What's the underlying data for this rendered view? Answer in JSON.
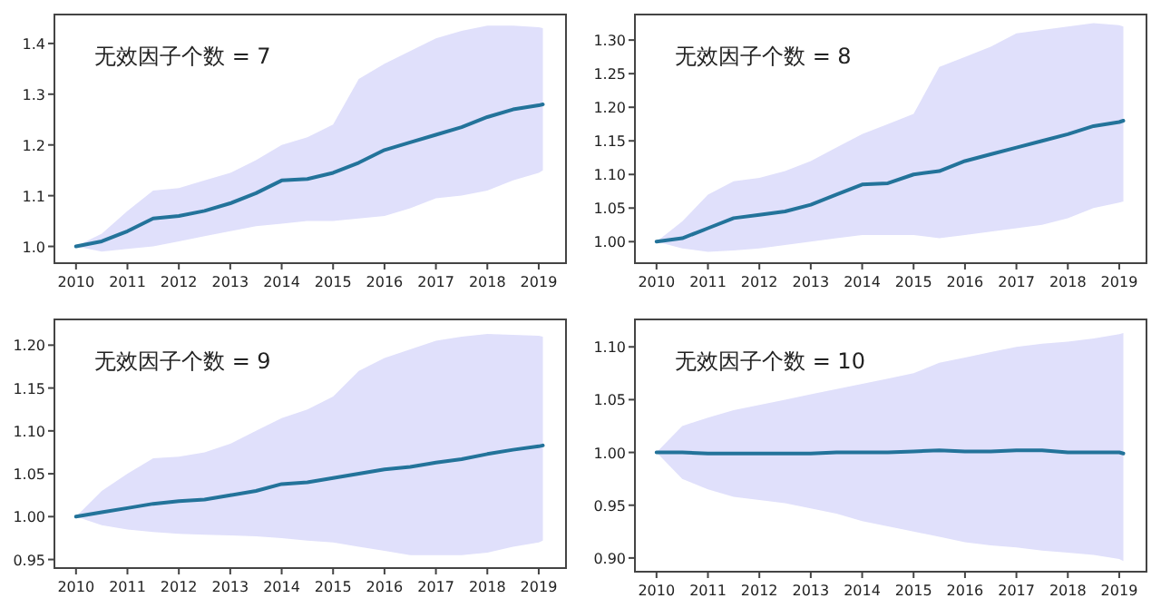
{
  "chart_data": [
    {
      "type": "line",
      "title": "无效因子个数 = 7",
      "x": [
        2010,
        2010.5,
        2011,
        2011.5,
        2012,
        2012.5,
        2013,
        2013.5,
        2014,
        2014.5,
        2015,
        2015.5,
        2016,
        2016.5,
        2017,
        2017.5,
        2018,
        2018.5,
        2019,
        2019.08
      ],
      "xlim": [
        2009.58,
        2019.53
      ],
      "xticks": [
        2010,
        2011,
        2012,
        2013,
        2014,
        2015,
        2016,
        2017,
        2018,
        2019
      ],
      "ylim": [
        0.967,
        1.457
      ],
      "yticks": [
        {
          "value": 1,
          "label": "1.0"
        },
        {
          "value": 1.1,
          "label": "1.1"
        },
        {
          "value": 1.2,
          "label": "1.2"
        },
        {
          "value": 1.3,
          "label": "1.3"
        },
        {
          "value": 1.4,
          "label": "1.4"
        }
      ],
      "series": [
        {
          "color": "#23739a",
          "values": [
            1.0,
            1.01,
            1.03,
            1.055,
            1.06,
            1.07,
            1.085,
            1.105,
            1.13,
            1.133,
            1.145,
            1.165,
            1.19,
            1.205,
            1.22,
            1.235,
            1.255,
            1.27,
            1.278,
            1.28
          ],
          "upper": [
            1.0,
            1.025,
            1.07,
            1.11,
            1.115,
            1.13,
            1.145,
            1.17,
            1.2,
            1.215,
            1.24,
            1.33,
            1.36,
            1.385,
            1.41,
            1.425,
            1.435,
            1.435,
            1.432,
            1.43
          ],
          "lower": [
            1.0,
            0.99,
            0.995,
            1.0,
            1.01,
            1.02,
            1.03,
            1.04,
            1.045,
            1.05,
            1.05,
            1.055,
            1.06,
            1.075,
            1.095,
            1.1,
            1.11,
            1.13,
            1.145,
            1.15
          ]
        }
      ]
    },
    {
      "type": "line",
      "title": "无效因子个数 = 8",
      "x": [
        2010,
        2010.5,
        2011,
        2011.5,
        2012,
        2012.5,
        2013,
        2013.5,
        2014,
        2014.5,
        2015,
        2015.5,
        2016,
        2016.5,
        2017,
        2017.5,
        2018,
        2018.5,
        2019,
        2019.08
      ],
      "xlim": [
        2009.58,
        2019.53
      ],
      "xticks": [
        2010,
        2011,
        2012,
        2013,
        2014,
        2015,
        2016,
        2017,
        2018,
        2019
      ],
      "ylim": [
        0.968,
        1.338
      ],
      "yticks": [
        {
          "value": 1,
          "label": "1.00"
        },
        {
          "value": 1.05,
          "label": "1.05"
        },
        {
          "value": 1.1,
          "label": "1.10"
        },
        {
          "value": 1.15,
          "label": "1.15"
        },
        {
          "value": 1.2,
          "label": "1.20"
        },
        {
          "value": 1.25,
          "label": "1.25"
        },
        {
          "value": 1.3,
          "label": "1.30"
        }
      ],
      "series": [
        {
          "color": "#23739a",
          "values": [
            1.0,
            1.005,
            1.02,
            1.035,
            1.04,
            1.045,
            1.055,
            1.07,
            1.085,
            1.087,
            1.1,
            1.105,
            1.12,
            1.13,
            1.14,
            1.15,
            1.16,
            1.172,
            1.178,
            1.18
          ],
          "upper": [
            1.0,
            1.03,
            1.07,
            1.09,
            1.095,
            1.105,
            1.12,
            1.14,
            1.16,
            1.175,
            1.19,
            1.26,
            1.275,
            1.29,
            1.31,
            1.315,
            1.32,
            1.325,
            1.322,
            1.32
          ],
          "lower": [
            1.0,
            0.99,
            0.985,
            0.987,
            0.99,
            0.995,
            1.0,
            1.005,
            1.01,
            1.01,
            1.01,
            1.005,
            1.01,
            1.015,
            1.02,
            1.025,
            1.035,
            1.05,
            1.058,
            1.06
          ]
        }
      ]
    },
    {
      "type": "line",
      "title": "无效因子个数 = 9",
      "x": [
        2010,
        2010.5,
        2011,
        2011.5,
        2012,
        2012.5,
        2013,
        2013.5,
        2014,
        2014.5,
        2015,
        2015.5,
        2016,
        2016.5,
        2017,
        2017.5,
        2018,
        2018.5,
        2019,
        2019.08
      ],
      "xlim": [
        2009.58,
        2019.53
      ],
      "xticks": [
        2010,
        2011,
        2012,
        2013,
        2014,
        2015,
        2016,
        2017,
        2018,
        2019
      ],
      "ylim": [
        0.94,
        1.23
      ],
      "yticks": [
        {
          "value": 0.95,
          "label": "0.95"
        },
        {
          "value": 1,
          "label": "1.00"
        },
        {
          "value": 1.05,
          "label": "1.05"
        },
        {
          "value": 1.1,
          "label": "1.10"
        },
        {
          "value": 1.15,
          "label": "1.15"
        },
        {
          "value": 1.2,
          "label": "1.20"
        }
      ],
      "series": [
        {
          "color": "#23739a",
          "values": [
            1.0,
            1.005,
            1.01,
            1.015,
            1.018,
            1.02,
            1.025,
            1.03,
            1.038,
            1.04,
            1.045,
            1.05,
            1.055,
            1.058,
            1.063,
            1.067,
            1.073,
            1.078,
            1.082,
            1.083
          ],
          "upper": [
            1.0,
            1.03,
            1.05,
            1.068,
            1.07,
            1.075,
            1.085,
            1.1,
            1.115,
            1.125,
            1.14,
            1.17,
            1.185,
            1.195,
            1.205,
            1.21,
            1.213,
            1.212,
            1.211,
            1.21
          ],
          "lower": [
            1.0,
            0.99,
            0.985,
            0.982,
            0.98,
            0.979,
            0.978,
            0.977,
            0.975,
            0.972,
            0.97,
            0.965,
            0.96,
            0.955,
            0.955,
            0.955,
            0.958,
            0.965,
            0.97,
            0.972
          ]
        }
      ]
    },
    {
      "type": "line",
      "title": "无效因子个数 = 10",
      "x": [
        2010,
        2010.5,
        2011,
        2011.5,
        2012,
        2012.5,
        2013,
        2013.5,
        2014,
        2014.5,
        2015,
        2015.5,
        2016,
        2016.5,
        2017,
        2017.5,
        2018,
        2018.5,
        2019,
        2019.08
      ],
      "xlim": [
        2009.58,
        2019.53
      ],
      "xticks": [
        2010,
        2011,
        2012,
        2013,
        2014,
        2015,
        2016,
        2017,
        2018,
        2019
      ],
      "ylim": [
        0.887,
        1.126
      ],
      "yticks": [
        {
          "value": 0.9,
          "label": "0.90"
        },
        {
          "value": 0.95,
          "label": "0.95"
        },
        {
          "value": 1,
          "label": "1.00"
        },
        {
          "value": 1.05,
          "label": "1.05"
        },
        {
          "value": 1.1,
          "label": "1.10"
        }
      ],
      "series": [
        {
          "color": "#23739a",
          "values": [
            1.0,
            1.0,
            0.999,
            0.999,
            0.999,
            0.999,
            0.999,
            1.0,
            1.0,
            1.0,
            1.001,
            1.002,
            1.001,
            1.001,
            1.002,
            1.002,
            1.0,
            1.0,
            1.0,
            0.999
          ],
          "upper": [
            1.0,
            1.025,
            1.033,
            1.04,
            1.045,
            1.05,
            1.055,
            1.06,
            1.065,
            1.07,
            1.075,
            1.085,
            1.09,
            1.095,
            1.1,
            1.103,
            1.105,
            1.108,
            1.112,
            1.113
          ],
          "lower": [
            1.0,
            0.975,
            0.965,
            0.958,
            0.955,
            0.952,
            0.947,
            0.942,
            0.935,
            0.93,
            0.925,
            0.92,
            0.915,
            0.912,
            0.91,
            0.907,
            0.905,
            0.903,
            0.899,
            0.897
          ]
        }
      ]
    }
  ]
}
